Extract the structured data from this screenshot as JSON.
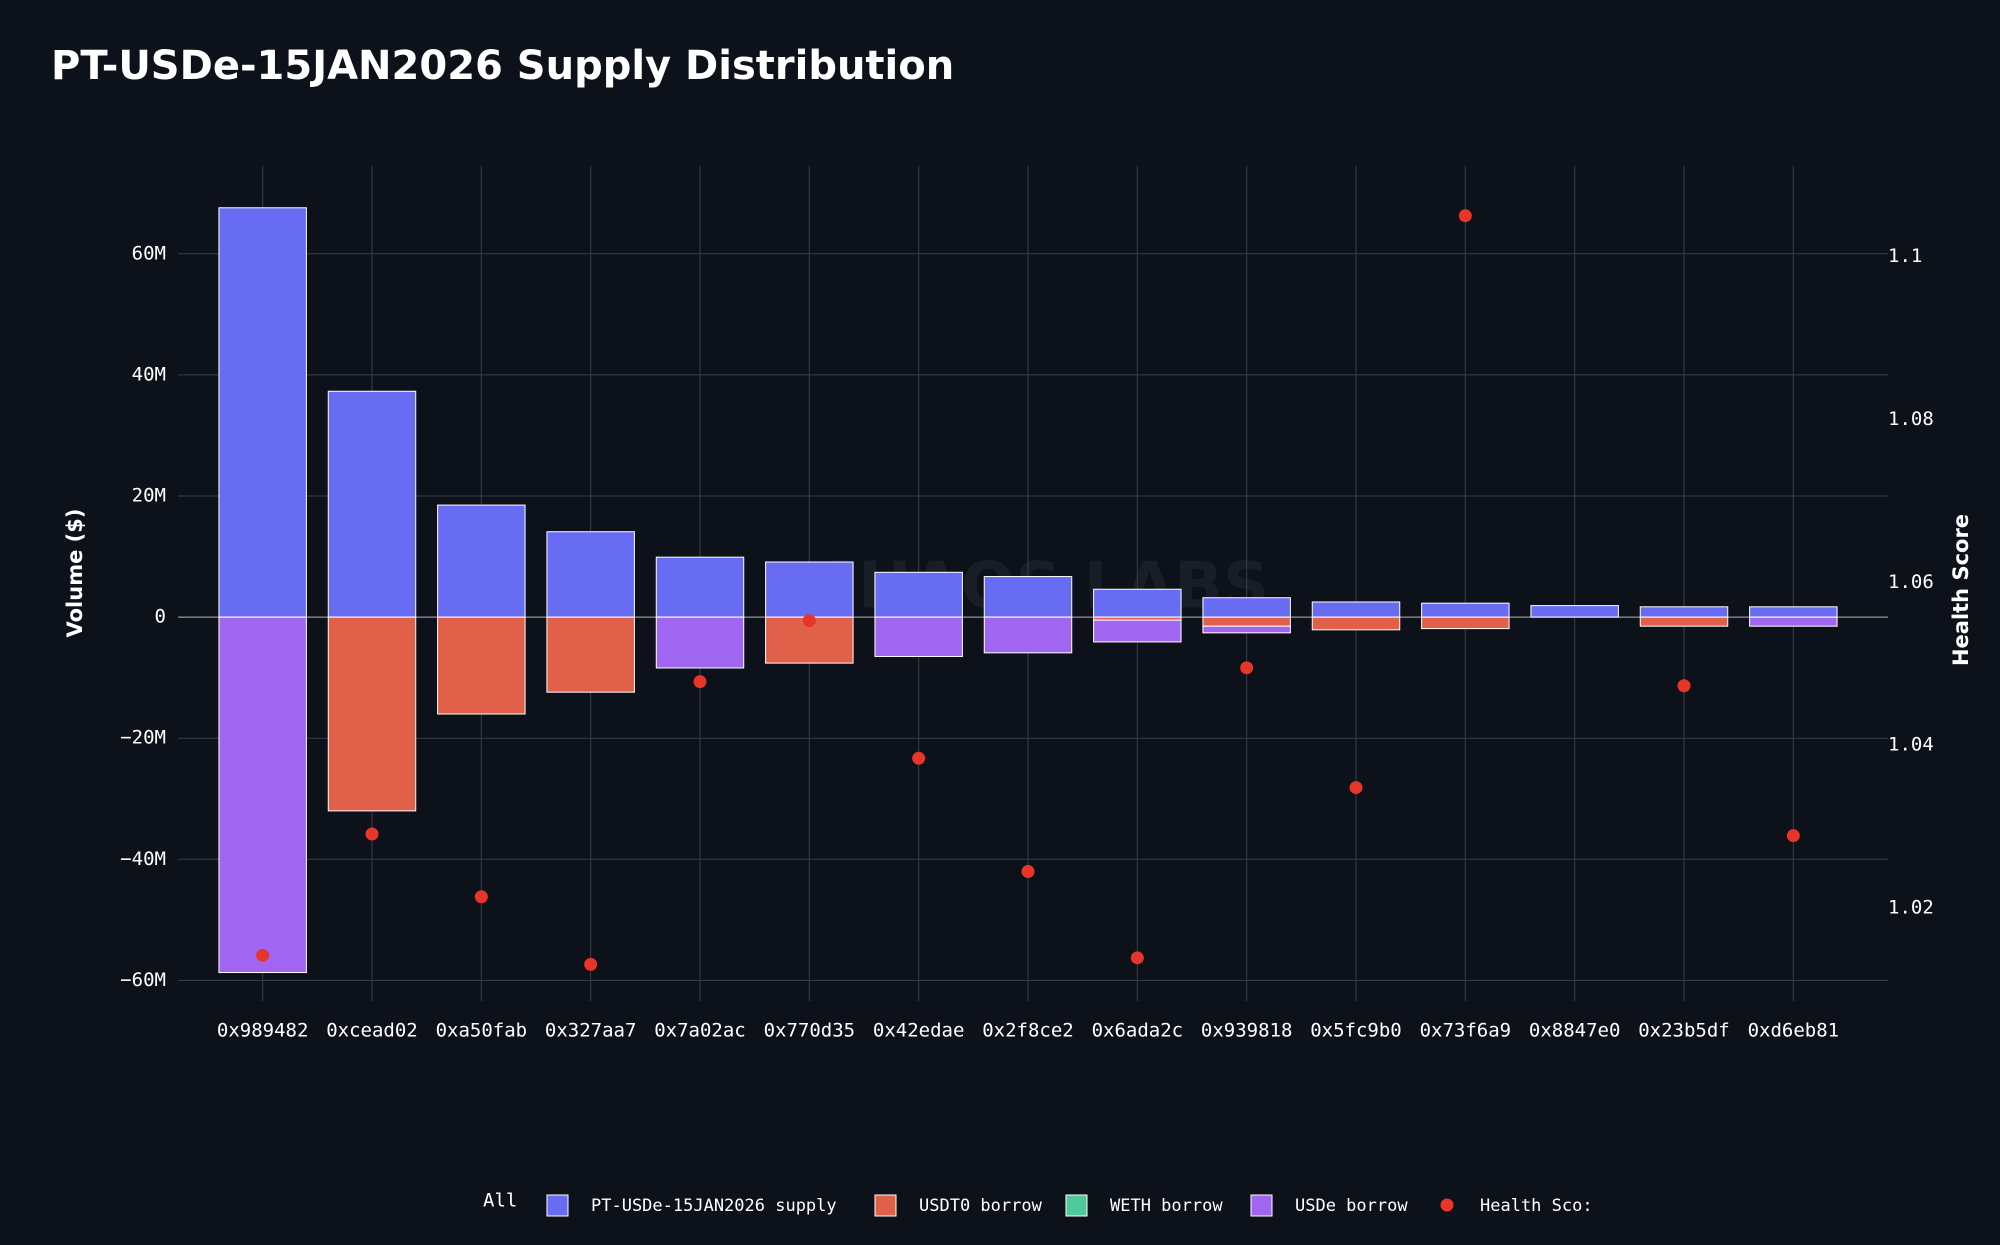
{
  "chart_data": {
    "type": "bar",
    "title": "PT-USDe-15JAN2026 Supply Distribution",
    "watermark": "CHAOS LABS",
    "y_label": "Volume ($)",
    "y2_label": "Health Score",
    "legend_title": "All",
    "barmode": "relative",
    "categories": [
      "0x989482",
      "0xcead02",
      "0xa50fab",
      "0x327aa7",
      "0x7a02ac",
      "0x770d35",
      "0x42edae",
      "0x2f8ce2",
      "0x6ada2c",
      "0x939818",
      "0x5fc9b0",
      "0x73f6a9",
      "0x8847e0",
      "0x23b5df",
      "0xd6eb81"
    ],
    "series": [
      {
        "name": "PT-USDe-15JAN2026 supply",
        "color": "#676cf3",
        "type": "bar",
        "values": [
          67600000,
          37300000,
          18500000,
          14100000,
          9900000,
          9100000,
          7400000,
          6700000,
          4600000,
          3200000,
          2500000,
          2300000,
          1900000,
          1700000,
          1700000
        ]
      },
      {
        "name": "USDT0 borrow",
        "color": "#e0604a",
        "type": "bar",
        "values": [
          0,
          -32000000,
          -16000000,
          -12400000,
          0,
          -7600000,
          0,
          0,
          -500000,
          -1500000,
          -2100000,
          -1900000,
          0,
          -1500000,
          0
        ]
      },
      {
        "name": "WETH borrow",
        "color": "#4fc99a",
        "type": "bar",
        "values": [
          0,
          0,
          0,
          0,
          0,
          0,
          0,
          0,
          0,
          0,
          0,
          0,
          0,
          0,
          0
        ]
      },
      {
        "name": "USDe borrow",
        "color": "#a066f2",
        "type": "bar",
        "values": [
          -58700000,
          0,
          0,
          0,
          -8400000,
          0,
          -6500000,
          -5900000,
          -3600000,
          -1100000,
          0,
          0,
          0,
          0,
          -1500000
        ]
      },
      {
        "name": "Health Sco:",
        "color": "#e8352a",
        "type": "scatter",
        "axis": "y2",
        "values": [
          1.0142,
          1.0291,
          1.0214,
          1.0131,
          1.0478,
          1.0553,
          1.0384,
          1.0245,
          1.0139,
          1.0495,
          1.0348,
          1.105,
          null,
          1.0473,
          1.0289
        ]
      }
    ],
    "ylim": [
      -63400000,
      74500000
    ],
    "yticks": [
      {
        "value": -60000000,
        "label": "−60M"
      },
      {
        "value": -40000000,
        "label": "−40M"
      },
      {
        "value": -20000000,
        "label": "−20M"
      },
      0,
      {
        "value": 20000000,
        "label": "20M"
      },
      {
        "value": 40000000,
        "label": "40M"
      },
      {
        "value": 60000000,
        "label": "60M"
      }
    ],
    "y2lim": [
      1.0086,
      1.1111
    ],
    "y2ticks": [
      1.02,
      1.04,
      1.06,
      1.08,
      1.1
    ],
    "grid": true
  }
}
